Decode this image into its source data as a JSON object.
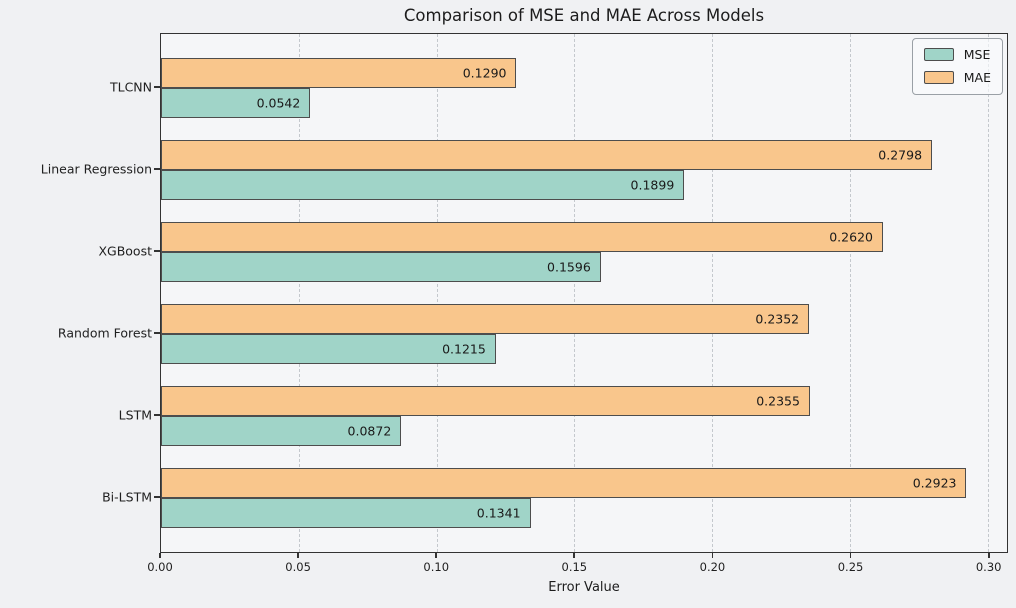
{
  "title": "Comparison of MSE and MAE Across Models",
  "xlabel": "Error Value",
  "legend": {
    "position": "upper right",
    "items": [
      {
        "label": "MSE"
      },
      {
        "label": "MAE"
      }
    ]
  },
  "chart_data": {
    "type": "bar",
    "orientation": "horizontal",
    "title": "Comparison of MSE and MAE Across Models",
    "xlabel": "Error Value",
    "ylabel": "",
    "categories": [
      "TLCNN",
      "Linear Regression",
      "XGBoost",
      "Random Forest",
      "LSTM",
      "Bi-LSTM"
    ],
    "series": [
      {
        "name": "MSE",
        "color": "#a0d4c8",
        "values": [
          0.0542,
          0.1899,
          0.1596,
          0.1215,
          0.0872,
          0.1341
        ],
        "labels": [
          "0.0542",
          "0.1899",
          "0.1596",
          "0.1215",
          "0.0872",
          "0.1341"
        ]
      },
      {
        "name": "MAE",
        "color": "#f9c68c",
        "values": [
          0.129,
          0.2798,
          0.262,
          0.2352,
          0.2355,
          0.2923
        ],
        "labels": [
          "0.1290",
          "0.2798",
          "0.2620",
          "0.2352",
          "0.2355",
          "0.2923"
        ]
      }
    ],
    "bar_display_order_per_group": [
      "MAE",
      "MSE"
    ],
    "xticks": [
      0.0,
      0.05,
      0.1,
      0.15,
      0.2,
      0.25,
      0.3
    ],
    "xtick_labels": [
      "0.00",
      "0.05",
      "0.10",
      "0.15",
      "0.20",
      "0.25",
      "0.30"
    ],
    "xlim": [
      0,
      0.307
    ],
    "grid": "vertical-dashed",
    "legend_position": "upper right",
    "value_labels_position": "inside-right"
  },
  "colors": {
    "figure_bg": "#f0f1f3",
    "axes_bg": "#f5f6f8",
    "bar_border": "#4d4d4d",
    "spine": "#333333",
    "grid": "#c4c8cd",
    "mse": "#a0d4c8",
    "mae": "#f9c68c",
    "text": "#1f1f1f"
  }
}
